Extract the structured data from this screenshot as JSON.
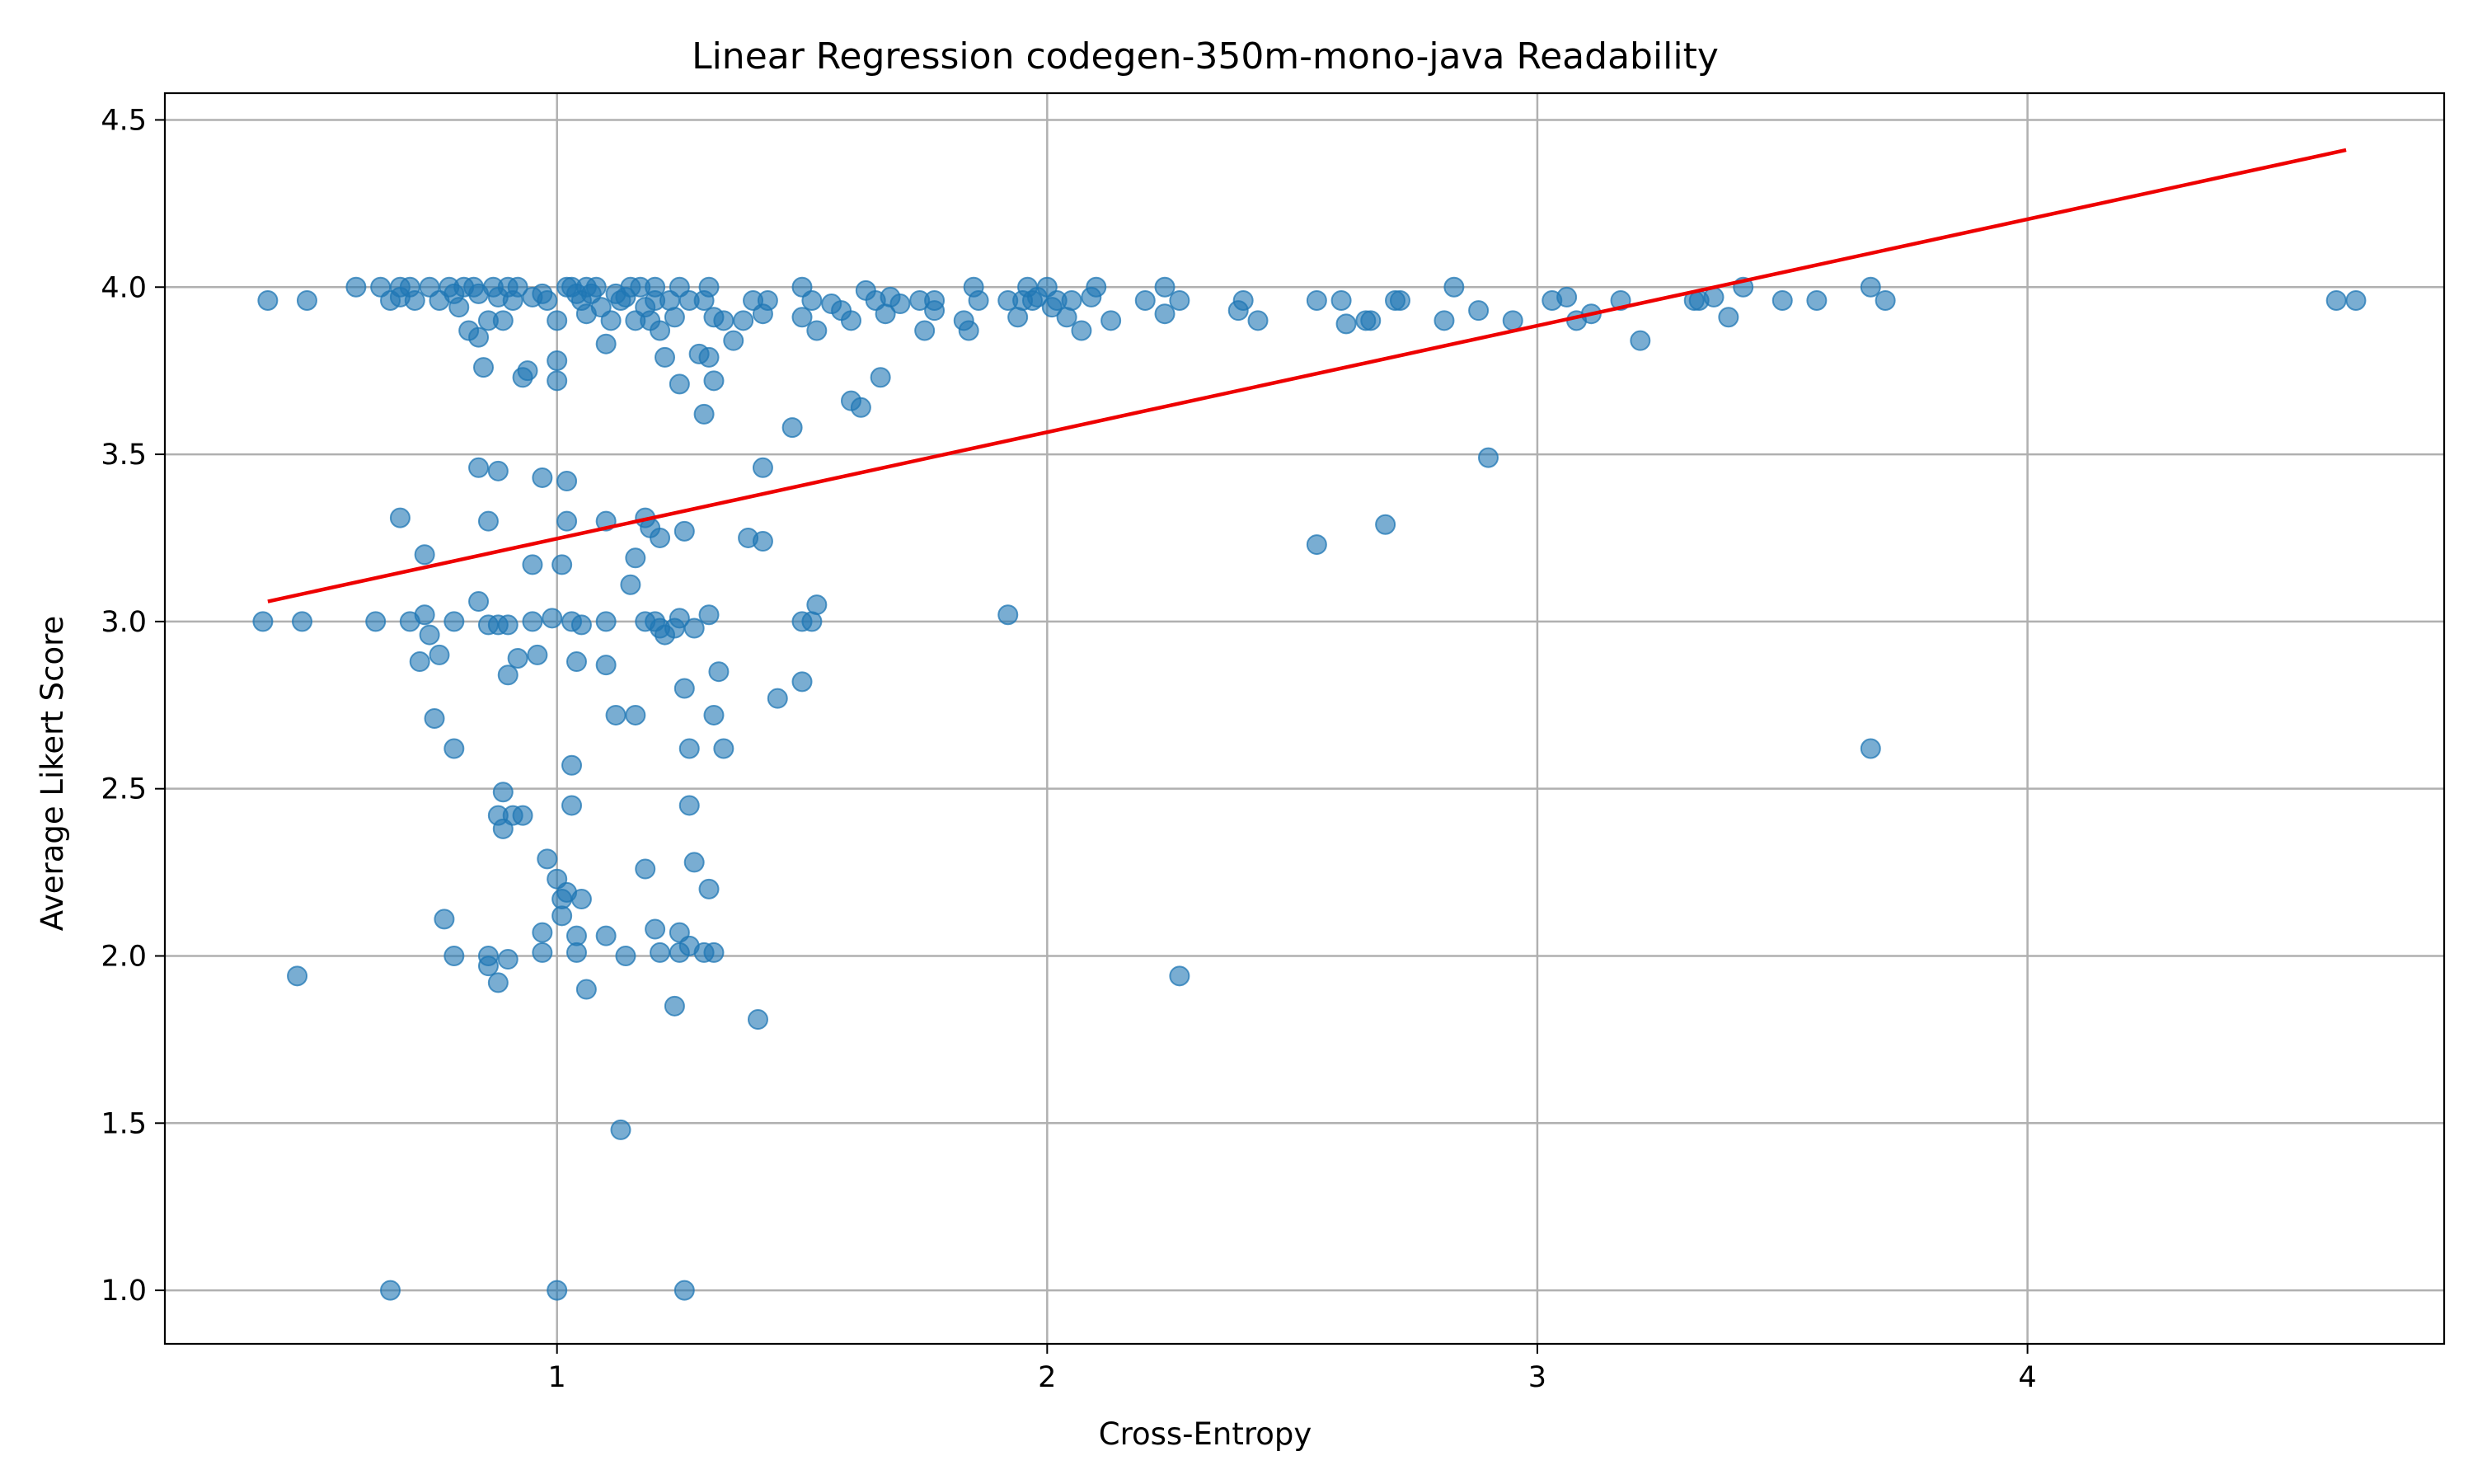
{
  "chart_data": {
    "type": "scatter",
    "title": "Linear Regression codegen-350m-mono-java Readability",
    "xlabel": "Cross-Entropy",
    "ylabel": "Average Likert Score",
    "xlim": [
      0.2,
      4.85
    ],
    "ylim": [
      0.84,
      4.58
    ],
    "xticks": [
      1,
      2,
      3,
      4
    ],
    "yticks": [
      1.0,
      1.5,
      2.0,
      2.5,
      3.0,
      3.5,
      4.0,
      4.5
    ],
    "grid": true,
    "colors": {
      "points": "#1f77b4",
      "regression_line": "#ee0000"
    },
    "regression_line": {
      "x": [
        0.41,
        4.65
      ],
      "y": [
        3.06,
        4.41
      ]
    },
    "points": [
      [
        0.41,
        3.96
      ],
      [
        0.49,
        3.96
      ],
      [
        0.59,
        4.0
      ],
      [
        0.64,
        4.0
      ],
      [
        0.66,
        3.96
      ],
      [
        0.68,
        4.0
      ],
      [
        0.68,
        3.97
      ],
      [
        0.7,
        4.0
      ],
      [
        0.71,
        3.96
      ],
      [
        0.74,
        4.0
      ],
      [
        0.76,
        3.96
      ],
      [
        0.78,
        4.0
      ],
      [
        0.79,
        3.98
      ],
      [
        0.8,
        3.94
      ],
      [
        0.81,
        4.0
      ],
      [
        0.82,
        3.87
      ],
      [
        0.83,
        4.0
      ],
      [
        0.84,
        3.98
      ],
      [
        0.84,
        3.85
      ],
      [
        0.85,
        3.76
      ],
      [
        0.86,
        3.9
      ],
      [
        0.87,
        4.0
      ],
      [
        0.88,
        3.97
      ],
      [
        0.89,
        3.9
      ],
      [
        0.9,
        4.0
      ],
      [
        0.91,
        3.96
      ],
      [
        0.92,
        4.0
      ],
      [
        0.93,
        3.73
      ],
      [
        0.94,
        3.75
      ],
      [
        0.95,
        3.97
      ],
      [
        0.97,
        3.98
      ],
      [
        0.98,
        3.96
      ],
      [
        1.0,
        3.9
      ],
      [
        1.0,
        3.78
      ],
      [
        1.0,
        3.72
      ],
      [
        1.02,
        4.0
      ],
      [
        1.03,
        4.0
      ],
      [
        1.04,
        3.98
      ],
      [
        1.05,
        3.96
      ],
      [
        1.06,
        4.0
      ],
      [
        1.06,
        3.92
      ],
      [
        1.07,
        3.98
      ],
      [
        1.08,
        4.0
      ],
      [
        1.09,
        3.94
      ],
      [
        1.1,
        3.83
      ],
      [
        1.11,
        3.9
      ],
      [
        1.12,
        3.98
      ],
      [
        1.13,
        3.96
      ],
      [
        1.14,
        3.97
      ],
      [
        1.15,
        4.0
      ],
      [
        1.16,
        3.9
      ],
      [
        1.17,
        4.0
      ],
      [
        1.18,
        3.94
      ],
      [
        1.19,
        3.9
      ],
      [
        1.2,
        4.0
      ],
      [
        1.2,
        3.96
      ],
      [
        1.21,
        3.87
      ],
      [
        1.22,
        3.79
      ],
      [
        1.23,
        3.96
      ],
      [
        1.24,
        3.91
      ],
      [
        1.25,
        4.0
      ],
      [
        1.25,
        3.71
      ],
      [
        1.27,
        3.96
      ],
      [
        1.29,
        3.8
      ],
      [
        1.3,
        3.96
      ],
      [
        1.3,
        3.62
      ],
      [
        1.31,
        4.0
      ],
      [
        1.31,
        3.79
      ],
      [
        1.32,
        3.91
      ],
      [
        1.32,
        3.72
      ],
      [
        1.34,
        3.9
      ],
      [
        1.36,
        3.84
      ],
      [
        1.38,
        3.9
      ],
      [
        1.4,
        3.96
      ],
      [
        1.42,
        3.92
      ],
      [
        1.43,
        3.96
      ],
      [
        1.48,
        3.58
      ],
      [
        1.5,
        4.0
      ],
      [
        1.5,
        3.91
      ],
      [
        1.52,
        3.96
      ],
      [
        1.53,
        3.87
      ],
      [
        1.56,
        3.95
      ],
      [
        1.58,
        3.93
      ],
      [
        1.6,
        3.9
      ],
      [
        1.6,
        3.66
      ],
      [
        1.62,
        3.64
      ],
      [
        1.63,
        3.99
      ],
      [
        1.65,
        3.96
      ],
      [
        1.66,
        3.73
      ],
      [
        1.67,
        3.92
      ],
      [
        1.68,
        3.97
      ],
      [
        1.7,
        3.95
      ],
      [
        1.74,
        3.96
      ],
      [
        1.75,
        3.87
      ],
      [
        1.77,
        3.93
      ],
      [
        1.77,
        3.96
      ],
      [
        1.83,
        3.9
      ],
      [
        1.84,
        3.87
      ],
      [
        1.85,
        4.0
      ],
      [
        1.86,
        3.96
      ],
      [
        1.92,
        3.96
      ],
      [
        1.94,
        3.91
      ],
      [
        1.95,
        3.96
      ],
      [
        1.96,
        4.0
      ],
      [
        1.97,
        3.96
      ],
      [
        1.98,
        3.97
      ],
      [
        2.0,
        4.0
      ],
      [
        2.01,
        3.94
      ],
      [
        2.02,
        3.96
      ],
      [
        2.04,
        3.91
      ],
      [
        2.05,
        3.96
      ],
      [
        2.07,
        3.87
      ],
      [
        2.09,
        3.97
      ],
      [
        2.1,
        4.0
      ],
      [
        2.13,
        3.9
      ],
      [
        2.2,
        3.96
      ],
      [
        2.24,
        4.0
      ],
      [
        2.24,
        3.92
      ],
      [
        2.27,
        3.96
      ],
      [
        2.39,
        3.93
      ],
      [
        2.4,
        3.96
      ],
      [
        2.43,
        3.9
      ],
      [
        2.55,
        3.96
      ],
      [
        2.6,
        3.96
      ],
      [
        2.61,
        3.89
      ],
      [
        2.65,
        3.9
      ],
      [
        2.66,
        3.9
      ],
      [
        2.71,
        3.96
      ],
      [
        2.72,
        3.96
      ],
      [
        2.81,
        3.9
      ],
      [
        2.83,
        4.0
      ],
      [
        2.88,
        3.93
      ],
      [
        2.95,
        3.9
      ],
      [
        3.03,
        3.96
      ],
      [
        3.06,
        3.97
      ],
      [
        3.08,
        3.9
      ],
      [
        3.11,
        3.92
      ],
      [
        3.17,
        3.96
      ],
      [
        3.21,
        3.84
      ],
      [
        3.32,
        3.96
      ],
      [
        3.33,
        3.96
      ],
      [
        3.36,
        3.97
      ],
      [
        3.39,
        3.91
      ],
      [
        3.42,
        4.0
      ],
      [
        3.5,
        3.96
      ],
      [
        3.57,
        3.96
      ],
      [
        3.68,
        4.0
      ],
      [
        3.71,
        3.96
      ],
      [
        4.63,
        3.96
      ],
      [
        4.67,
        3.96
      ],
      [
        0.84,
        3.46
      ],
      [
        0.88,
        3.45
      ],
      [
        0.97,
        3.43
      ],
      [
        1.02,
        3.42
      ],
      [
        0.68,
        3.31
      ],
      [
        0.86,
        3.3
      ],
      [
        1.02,
        3.3
      ],
      [
        1.1,
        3.3
      ],
      [
        1.18,
        3.31
      ],
      [
        1.19,
        3.28
      ],
      [
        1.21,
        3.25
      ],
      [
        1.26,
        3.27
      ],
      [
        1.39,
        3.25
      ],
      [
        1.42,
        3.24
      ],
      [
        1.42,
        3.46
      ],
      [
        0.73,
        3.2
      ],
      [
        0.95,
        3.17
      ],
      [
        1.01,
        3.17
      ],
      [
        1.16,
        3.19
      ],
      [
        1.15,
        3.11
      ],
      [
        2.55,
        3.23
      ],
      [
        2.69,
        3.29
      ],
      [
        2.9,
        3.49
      ],
      [
        0.84,
        3.06
      ],
      [
        0.4,
        3.0
      ],
      [
        0.48,
        3.0
      ],
      [
        0.63,
        3.0
      ],
      [
        0.7,
        3.0
      ],
      [
        0.73,
        3.02
      ],
      [
        0.74,
        2.96
      ],
      [
        0.79,
        3.0
      ],
      [
        0.86,
        2.99
      ],
      [
        0.88,
        2.99
      ],
      [
        0.9,
        2.99
      ],
      [
        0.95,
        3.0
      ],
      [
        0.99,
        3.01
      ],
      [
        1.03,
        3.0
      ],
      [
        1.05,
        2.99
      ],
      [
        1.1,
        3.0
      ],
      [
        1.18,
        3.0
      ],
      [
        1.2,
        3.0
      ],
      [
        1.21,
        2.98
      ],
      [
        1.22,
        2.96
      ],
      [
        1.24,
        2.98
      ],
      [
        1.25,
        3.01
      ],
      [
        1.28,
        2.98
      ],
      [
        1.31,
        3.02
      ],
      [
        1.5,
        3.0
      ],
      [
        1.52,
        3.0
      ],
      [
        1.53,
        3.05
      ],
      [
        1.92,
        3.02
      ],
      [
        0.72,
        2.88
      ],
      [
        0.76,
        2.9
      ],
      [
        0.9,
        2.84
      ],
      [
        0.92,
        2.89
      ],
      [
        0.96,
        2.9
      ],
      [
        1.04,
        2.88
      ],
      [
        1.1,
        2.87
      ],
      [
        1.26,
        2.8
      ],
      [
        1.33,
        2.85
      ],
      [
        1.45,
        2.77
      ],
      [
        1.5,
        2.82
      ],
      [
        0.75,
        2.71
      ],
      [
        1.12,
        2.72
      ],
      [
        1.16,
        2.72
      ],
      [
        1.32,
        2.72
      ],
      [
        0.79,
        2.62
      ],
      [
        1.27,
        2.62
      ],
      [
        1.34,
        2.62
      ],
      [
        3.68,
        2.62
      ],
      [
        1.03,
        2.57
      ],
      [
        0.89,
        2.49
      ],
      [
        1.03,
        2.45
      ],
      [
        1.27,
        2.45
      ],
      [
        0.88,
        2.42
      ],
      [
        0.91,
        2.42
      ],
      [
        0.93,
        2.42
      ],
      [
        0.89,
        2.38
      ],
      [
        0.98,
        2.29
      ],
      [
        1.0,
        2.23
      ],
      [
        1.18,
        2.26
      ],
      [
        1.28,
        2.28
      ],
      [
        1.31,
        2.2
      ],
      [
        1.01,
        2.17
      ],
      [
        1.02,
        2.19
      ],
      [
        1.05,
        2.17
      ],
      [
        1.01,
        2.12
      ],
      [
        0.77,
        2.11
      ],
      [
        0.97,
        2.07
      ],
      [
        1.04,
        2.06
      ],
      [
        1.1,
        2.06
      ],
      [
        1.2,
        2.08
      ],
      [
        1.25,
        2.07
      ],
      [
        0.79,
        2.0
      ],
      [
        0.86,
        2.0
      ],
      [
        0.86,
        1.97
      ],
      [
        0.9,
        1.99
      ],
      [
        0.97,
        2.01
      ],
      [
        1.04,
        2.01
      ],
      [
        1.14,
        2.0
      ],
      [
        1.21,
        2.01
      ],
      [
        1.25,
        2.01
      ],
      [
        1.27,
        2.03
      ],
      [
        1.3,
        2.01
      ],
      [
        1.32,
        2.01
      ],
      [
        0.88,
        1.92
      ],
      [
        0.47,
        1.94
      ],
      [
        2.27,
        1.94
      ],
      [
        1.06,
        1.9
      ],
      [
        1.24,
        1.85
      ],
      [
        1.41,
        1.81
      ],
      [
        1.13,
        1.48
      ],
      [
        0.66,
        1.0
      ],
      [
        1.0,
        1.0
      ],
      [
        1.26,
        1.0
      ]
    ]
  }
}
